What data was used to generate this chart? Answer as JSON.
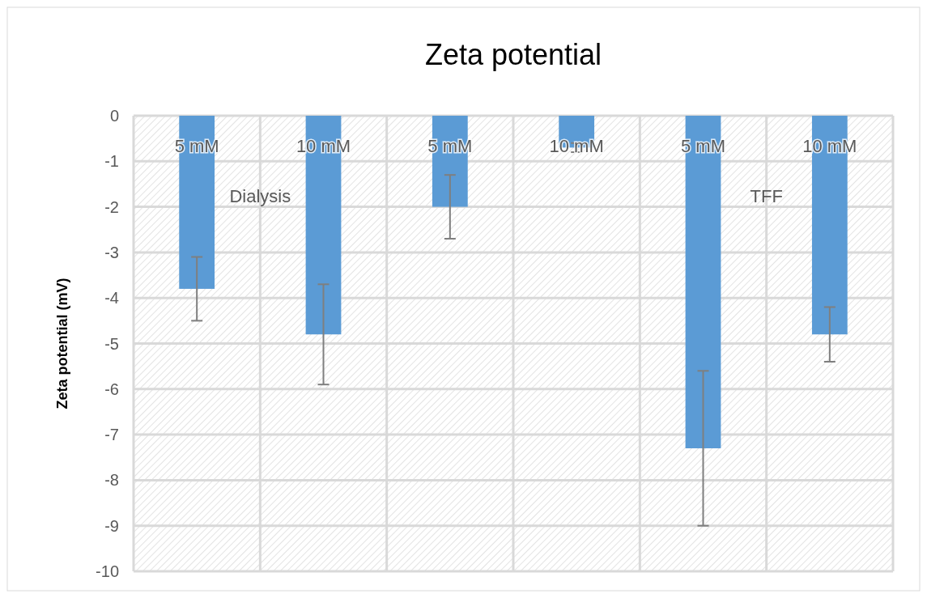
{
  "chart_data": {
    "type": "bar",
    "title": "Zeta potential",
    "ylabel": "Zeta potential (mV)",
    "categories": [
      "5 mM",
      "10 mM",
      "5 mM",
      "10 mM",
      "5 mM",
      "10 mM"
    ],
    "series": [
      {
        "color": "#5b9bd5",
        "values": [
          -3.8,
          -4.8,
          -2.0,
          -0.7,
          -7.3,
          -4.8
        ],
        "errors": [
          0.7,
          1.1,
          0.7,
          0.1,
          1.7,
          0.6
        ]
      }
    ],
    "ylim": [
      -10,
      0
    ],
    "yticks": [
      0,
      -1,
      -2,
      -3,
      -4,
      -5,
      -6,
      -7,
      -8,
      -9,
      -10
    ],
    "grid": true,
    "annotations": [
      "Dialysis",
      "TFF"
    ]
  }
}
